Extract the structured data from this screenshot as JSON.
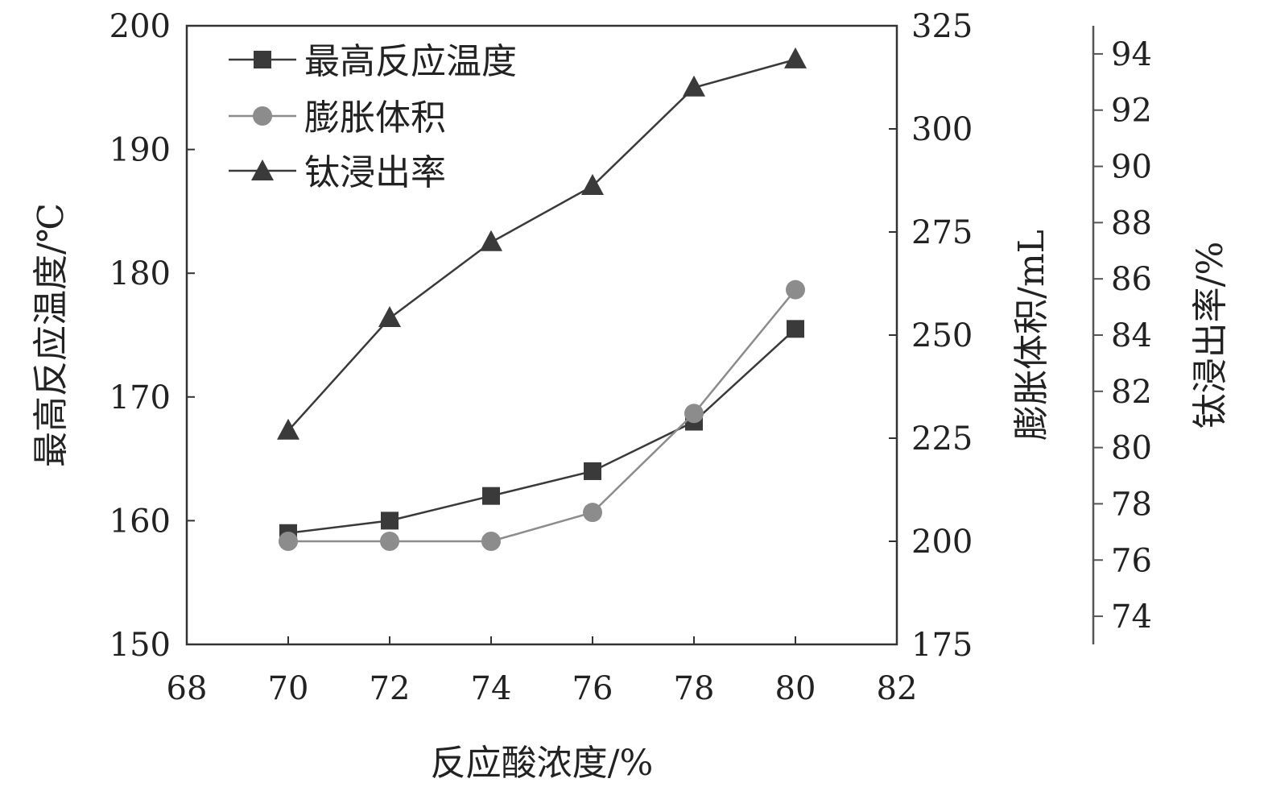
{
  "chart_data": {
    "type": "line",
    "title": "",
    "xlabel": "反应酸浓度/%",
    "x": [
      70,
      72,
      74,
      76,
      78,
      80
    ],
    "xlim": [
      68,
      82
    ],
    "xticks": [
      68,
      70,
      72,
      74,
      76,
      78,
      80,
      82
    ],
    "axes": {
      "left": {
        "label": "最高反应温度/℃",
        "range": [
          150,
          200
        ],
        "ticks": [
          150,
          160,
          170,
          180,
          190,
          200
        ]
      },
      "right1": {
        "label": "膨胀体积/mL",
        "range": [
          175,
          325
        ],
        "ticks": [
          175,
          200,
          225,
          250,
          275,
          300,
          325
        ]
      },
      "right2": {
        "label": "钛浸出率/%",
        "range": [
          73,
          95
        ],
        "ticks": [
          74,
          76,
          78,
          80,
          82,
          84,
          86,
          88,
          90,
          92,
          94
        ]
      }
    },
    "series": [
      {
        "name": "最高反应温度",
        "axis": "left",
        "marker": "square",
        "color": "#3a3a3a",
        "values": [
          159,
          160,
          162,
          164,
          168,
          175.5
        ]
      },
      {
        "name": "膨胀体积",
        "axis": "right1",
        "marker": "circle",
        "color": "#8c8c8c",
        "values": [
          200,
          200,
          200,
          207,
          231,
          261
        ]
      },
      {
        "name": "钛浸出率",
        "axis": "right2",
        "marker": "triangle",
        "color": "#3a3a3a",
        "values": [
          80.6,
          84.6,
          87.3,
          89.3,
          92.8,
          93.8
        ]
      }
    ],
    "legend_position": "top-left",
    "grid": false
  }
}
